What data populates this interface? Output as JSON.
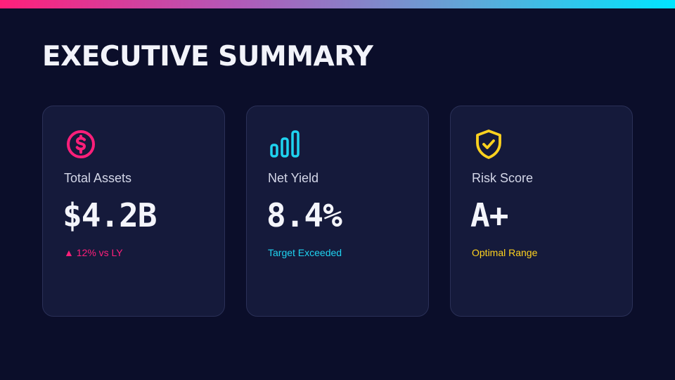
{
  "page": {
    "title": "EXECUTIVE SUMMARY"
  },
  "colors": {
    "background": "#0b0e2a",
    "card_background": "#151a3b",
    "accent_pink": "#ff1f7a",
    "accent_cyan": "#1fd3f0",
    "accent_yellow": "#ffd21f"
  },
  "cards": [
    {
      "icon": "dollar-circle-icon",
      "label": "Total Assets",
      "value": "$4.2B",
      "note": "▲ 12% vs LY",
      "accent": "#ff1f7a"
    },
    {
      "icon": "bar-chart-icon",
      "label": "Net Yield",
      "value": "8.4%",
      "note": "Target Exceeded",
      "accent": "#1fd3f0"
    },
    {
      "icon": "shield-check-icon",
      "label": "Risk Score",
      "value": "A+",
      "note": "Optimal Range",
      "accent": "#ffd21f"
    }
  ]
}
